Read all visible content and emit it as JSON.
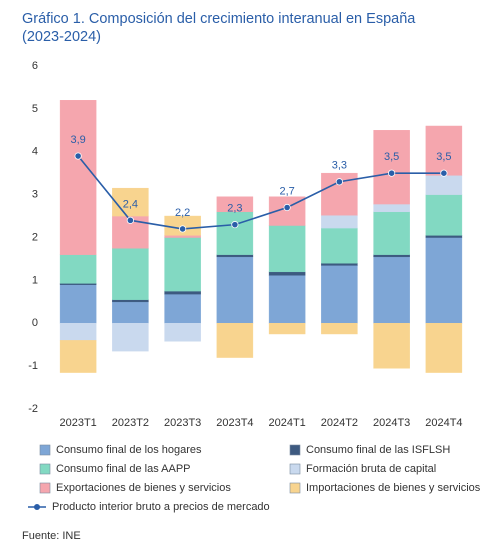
{
  "chart_data": {
    "type": "stacked_bar_line",
    "title": "Gráfico 1. Composición del crecimiento interanual en España (2023-2024)",
    "source": "Fuente: INE",
    "categories": [
      "2023T1",
      "2023T2",
      "2023T3",
      "2023T4",
      "2024T1",
      "2024T2",
      "2024T3",
      "2024T4"
    ],
    "ylim": [
      -2,
      6
    ],
    "yticks": [
      -2,
      -1,
      0,
      1,
      2,
      3,
      4,
      5,
      6
    ],
    "series": [
      {
        "name": "Consumo final de los hogares",
        "color": "#7ea6d6",
        "values": [
          0.9,
          0.5,
          0.68,
          1.55,
          1.12,
          1.35,
          1.55,
          2.0
        ]
      },
      {
        "name": "Consumo final de las ISFLSH",
        "color": "#3d5a80",
        "values": [
          0.03,
          0.05,
          0.07,
          0.05,
          0.08,
          0.05,
          0.05,
          0.05
        ]
      },
      {
        "name": "Consumo final de las AAPP",
        "color": "#82d9c2",
        "values": [
          0.67,
          1.2,
          1.25,
          1.0,
          1.08,
          0.82,
          1.0,
          0.95
        ]
      },
      {
        "name": "Formación bruta de capital",
        "color": "#c9d9ee",
        "values": [
          -0.4,
          -0.65,
          -0.42,
          0,
          0,
          0.3,
          0.18,
          0.45
        ]
      },
      {
        "name": "Exportaciones de bienes y servicios",
        "color": "#f5a6ae",
        "values": [
          3.6,
          0.75,
          0.05,
          0.35,
          0.67,
          0.98,
          1.72,
          1.15
        ]
      },
      {
        "name": "Importaciones de bienes y servicios",
        "color": "#f8d48f",
        "values": [
          -0.75,
          0.65,
          0.45,
          -0.8,
          -0.25,
          -0.25,
          -1.05,
          -1.15
        ]
      },
      {
        "name": "Producto interior bruto a precios de mercado",
        "color": "#2a5ea8",
        "type": "line",
        "values": [
          3.9,
          2.4,
          2.2,
          2.3,
          2.7,
          3.3,
          3.5,
          3.5
        ],
        "value_labels": [
          "3,9",
          "2,4",
          "2,2",
          "2,3",
          "2,7",
          "3,3",
          "3,5",
          "3,5"
        ]
      }
    ]
  }
}
